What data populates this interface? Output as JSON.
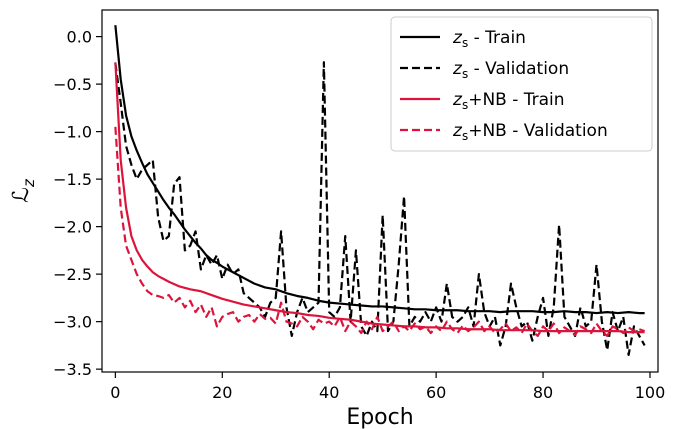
{
  "chart_data": {
    "type": "line",
    "xlabel": "Epoch",
    "ylabel": "ℒz",
    "xlim": [
      -2.5,
      101.5
    ],
    "ylim": [
      -3.53,
      0.28
    ],
    "x_ticks": [
      0,
      20,
      40,
      60,
      80,
      100
    ],
    "x_tick_labels": [
      "0",
      "20",
      "40",
      "60",
      "80",
      "100"
    ],
    "y_ticks": [
      0.0,
      -0.5,
      -1.0,
      -1.5,
      -2.0,
      -2.5,
      -3.0,
      -3.5
    ],
    "y_tick_labels": [
      "0.0",
      "−0.5",
      "−1.0",
      "−1.5",
      "−2.0",
      "−2.5",
      "−3.0",
      "−3.5"
    ],
    "grid": false,
    "legend_position": "top-right",
    "series": [
      {
        "name": "zs - Train",
        "legend_main": "z",
        "legend_sub": "s",
        "legend_rest": " - Train",
        "color": "#000000",
        "dash": "solid",
        "x": [
          0,
          1,
          2,
          3,
          4,
          5,
          6,
          7,
          8,
          9,
          10,
          11,
          12,
          13,
          14,
          15,
          16,
          17,
          18,
          19,
          20,
          22,
          24,
          26,
          28,
          30,
          32,
          34,
          36,
          38,
          40,
          42,
          44,
          46,
          48,
          50,
          52,
          54,
          56,
          58,
          60,
          62,
          64,
          66,
          68,
          70,
          72,
          74,
          76,
          78,
          80,
          82,
          84,
          86,
          88,
          90,
          92,
          94,
          96,
          98,
          99
        ],
        "y": [
          0.12,
          -0.45,
          -0.83,
          -1.05,
          -1.2,
          -1.33,
          -1.45,
          -1.54,
          -1.63,
          -1.72,
          -1.8,
          -1.87,
          -1.95,
          -2.03,
          -2.1,
          -2.17,
          -2.23,
          -2.3,
          -2.35,
          -2.38,
          -2.42,
          -2.48,
          -2.54,
          -2.6,
          -2.64,
          -2.66,
          -2.7,
          -2.73,
          -2.75,
          -2.78,
          -2.8,
          -2.81,
          -2.82,
          -2.83,
          -2.84,
          -2.84,
          -2.85,
          -2.86,
          -2.87,
          -2.87,
          -2.88,
          -2.88,
          -2.88,
          -2.89,
          -2.89,
          -2.89,
          -2.9,
          -2.89,
          -2.89,
          -2.89,
          -2.9,
          -2.9,
          -2.89,
          -2.9,
          -2.9,
          -2.91,
          -2.9,
          -2.91,
          -2.9,
          -2.91,
          -2.91
        ]
      },
      {
        "name": "zs - Validation",
        "legend_main": "z",
        "legend_sub": "s",
        "legend_rest": " - Validation",
        "color": "#000000",
        "dash": "dashed",
        "x": [
          0,
          1,
          2,
          3,
          4,
          5,
          6,
          7,
          8,
          9,
          10,
          11,
          12,
          13,
          14,
          15,
          16,
          17,
          18,
          19,
          20,
          21,
          22,
          23,
          24,
          25,
          26,
          27,
          28,
          29,
          30,
          31,
          32,
          33,
          34,
          35,
          36,
          37,
          38,
          39,
          40,
          41,
          42,
          43,
          44,
          45,
          46,
          47,
          48,
          49,
          50,
          51,
          52,
          53,
          54,
          55,
          56,
          57,
          58,
          59,
          60,
          61,
          62,
          63,
          64,
          65,
          66,
          67,
          68,
          69,
          70,
          71,
          72,
          73,
          74,
          75,
          76,
          77,
          78,
          79,
          80,
          81,
          82,
          83,
          84,
          85,
          86,
          87,
          88,
          89,
          90,
          91,
          92,
          93,
          94,
          95,
          96,
          97,
          98,
          99
        ],
        "y": [
          -0.28,
          -0.7,
          -1.15,
          -1.35,
          -1.5,
          -1.4,
          -1.35,
          -1.3,
          -1.9,
          -2.15,
          -2.1,
          -1.55,
          -1.48,
          -2.25,
          -2.2,
          -2.05,
          -2.45,
          -2.3,
          -2.4,
          -2.3,
          -2.55,
          -2.4,
          -2.5,
          -2.45,
          -2.7,
          -2.75,
          -2.8,
          -2.85,
          -2.95,
          -2.8,
          -2.75,
          -2.05,
          -2.85,
          -3.15,
          -2.9,
          -2.75,
          -2.9,
          -2.85,
          -2.8,
          -0.27,
          -2.9,
          -2.95,
          -2.85,
          -2.1,
          -3.0,
          -2.25,
          -3.05,
          -3.15,
          -3.0,
          -3.1,
          -1.88,
          -3.1,
          -3.0,
          -2.4,
          -1.68,
          -3.05,
          -2.95,
          -3.0,
          -2.9,
          -3.0,
          -2.85,
          -3.0,
          -2.6,
          -2.95,
          -3.0,
          -2.95,
          -2.85,
          -3.05,
          -2.5,
          -2.9,
          -3.05,
          -2.95,
          -3.25,
          -3.05,
          -2.6,
          -2.85,
          -3.05,
          -3.0,
          -3.2,
          -2.95,
          -2.75,
          -3.15,
          -2.85,
          -1.98,
          -2.95,
          -3.05,
          -3.15,
          -2.85,
          -3.05,
          -3.0,
          -2.4,
          -3.0,
          -3.3,
          -2.9,
          -3.1,
          -2.95,
          -3.35,
          -3.05,
          -3.15,
          -3.25
        ]
      },
      {
        "name": "zs+NB - Train",
        "legend_main": "z",
        "legend_sub": "s",
        "legend_rest": "+NB - Train",
        "color": "#dc143c",
        "dash": "solid",
        "x": [
          0,
          1,
          2,
          3,
          4,
          5,
          6,
          7,
          8,
          9,
          10,
          12,
          14,
          16,
          18,
          20,
          22,
          24,
          26,
          28,
          30,
          32,
          34,
          36,
          38,
          40,
          42,
          44,
          46,
          48,
          50,
          52,
          54,
          56,
          58,
          60,
          62,
          64,
          66,
          68,
          70,
          72,
          74,
          76,
          78,
          80,
          82,
          84,
          86,
          88,
          90,
          92,
          94,
          96,
          98,
          99
        ],
        "y": [
          -0.27,
          -1.3,
          -1.8,
          -2.1,
          -2.25,
          -2.35,
          -2.42,
          -2.48,
          -2.52,
          -2.55,
          -2.58,
          -2.63,
          -2.66,
          -2.68,
          -2.72,
          -2.76,
          -2.79,
          -2.82,
          -2.84,
          -2.86,
          -2.88,
          -2.9,
          -2.91,
          -2.93,
          -2.94,
          -2.96,
          -2.97,
          -2.98,
          -3.0,
          -3.02,
          -3.03,
          -3.04,
          -3.05,
          -3.05,
          -3.06,
          -3.06,
          -3.07,
          -3.07,
          -3.08,
          -3.08,
          -3.08,
          -3.09,
          -3.09,
          -3.09,
          -3.09,
          -3.1,
          -3.1,
          -3.1,
          -3.1,
          -3.1,
          -3.1,
          -3.1,
          -3.1,
          -3.11,
          -3.11,
          -3.11
        ]
      },
      {
        "name": "zs+NB - Validation",
        "legend_main": "z",
        "legend_sub": "s",
        "legend_rest": "+NB - Validation",
        "color": "#dc143c",
        "dash": "dashed",
        "x": [
          0,
          1,
          2,
          3,
          4,
          5,
          6,
          7,
          8,
          9,
          10,
          11,
          12,
          13,
          14,
          15,
          16,
          17,
          18,
          19,
          20,
          21,
          22,
          23,
          24,
          25,
          26,
          27,
          28,
          29,
          30,
          31,
          32,
          33,
          34,
          35,
          36,
          37,
          38,
          39,
          40,
          41,
          42,
          43,
          44,
          45,
          46,
          47,
          48,
          49,
          50,
          51,
          52,
          53,
          54,
          55,
          56,
          57,
          58,
          59,
          60,
          61,
          62,
          63,
          64,
          65,
          66,
          67,
          68,
          69,
          70,
          71,
          72,
          73,
          74,
          75,
          76,
          77,
          78,
          79,
          80,
          81,
          82,
          83,
          84,
          85,
          86,
          87,
          88,
          89,
          90,
          91,
          92,
          93,
          94,
          95,
          96,
          97,
          98,
          99
        ],
        "y": [
          -0.95,
          -1.8,
          -2.2,
          -2.35,
          -2.5,
          -2.6,
          -2.68,
          -2.72,
          -2.73,
          -2.75,
          -2.72,
          -2.8,
          -2.75,
          -2.85,
          -2.78,
          -2.9,
          -2.82,
          -2.95,
          -2.85,
          -3.05,
          -2.95,
          -2.92,
          -2.9,
          -3.0,
          -2.95,
          -2.93,
          -3.0,
          -2.92,
          -2.97,
          -2.96,
          -3.02,
          -2.8,
          -3.0,
          -3.02,
          -3.05,
          -2.95,
          -3.0,
          -3.08,
          -2.98,
          -3.02,
          -3.0,
          -3.05,
          -2.95,
          -3.1,
          -3.0,
          -3.05,
          -3.12,
          -3.0,
          -3.08,
          -2.95,
          -3.1,
          -3.05,
          -3.0,
          -3.1,
          -3.05,
          -3.1,
          -3.02,
          -3.08,
          -3.05,
          -3.12,
          -3.05,
          -3.1,
          -3.0,
          -3.08,
          -3.12,
          -3.04,
          -3.1,
          -3.06,
          -3.0,
          -3.1,
          -3.05,
          -3.12,
          -3.08,
          -3.02,
          -3.1,
          -3.06,
          -3.12,
          -3.02,
          -3.1,
          -3.15,
          -3.05,
          -3.1,
          -3.02,
          -3.12,
          -3.06,
          -3.1,
          -3.14,
          -3.05,
          -3.08,
          -3.12,
          -3.02,
          -3.1,
          -3.15,
          -3.05,
          -3.08,
          -3.12,
          -3.06,
          -3.1,
          -3.08,
          -3.1
        ]
      }
    ]
  }
}
